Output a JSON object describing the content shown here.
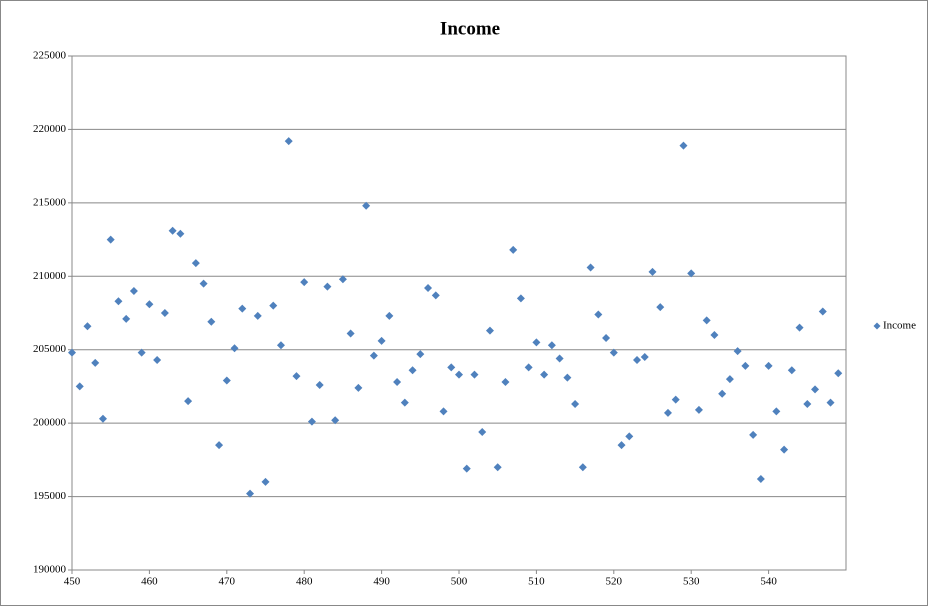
{
  "chart_data": {
    "type": "scatter",
    "title": "Income",
    "x": [
      450,
      451,
      452,
      453,
      454,
      455,
      456,
      457,
      458,
      459,
      460,
      461,
      462,
      463,
      464,
      465,
      466,
      467,
      468,
      469,
      470,
      471,
      472,
      473,
      474,
      475,
      476,
      477,
      478,
      479,
      480,
      481,
      482,
      483,
      484,
      485,
      486,
      487,
      488,
      489,
      490,
      491,
      492,
      493,
      494,
      495,
      496,
      497,
      498,
      499,
      500,
      501,
      502,
      503,
      504,
      505,
      506,
      507,
      508,
      509,
      510,
      511,
      512,
      513,
      514,
      515,
      516,
      517,
      518,
      519,
      520,
      521,
      522,
      523,
      524,
      525,
      526,
      527,
      528,
      529,
      530,
      531,
      532,
      533,
      534,
      535,
      536,
      537,
      538,
      539,
      540,
      541,
      542,
      543,
      544,
      545,
      546,
      547,
      548,
      549
    ],
    "series": [
      {
        "name": "Income",
        "color": "#4f81bd",
        "values": [
          204800,
          202500,
          206600,
          204100,
          200300,
          212500,
          208300,
          207100,
          209000,
          204800,
          208100,
          204300,
          207500,
          213100,
          212900,
          201500,
          210900,
          209500,
          206900,
          198500,
          202900,
          205100,
          207800,
          195200,
          207300,
          196000,
          208000,
          205300,
          219200,
          203200,
          209600,
          200100,
          202600,
          209300,
          200200,
          209800,
          206100,
          202400,
          214800,
          204600,
          205600,
          207300,
          202800,
          201400,
          203600,
          204700,
          209200,
          208700,
          200800,
          203800,
          203300,
          196900,
          203300,
          199400,
          206300,
          197000,
          202800,
          211800,
          208500,
          203800,
          205500,
          203300,
          205300,
          204400,
          203100,
          201300,
          197000,
          210600,
          207400,
          205800,
          204800,
          198500,
          199100,
          204300,
          204500,
          210300,
          207900,
          200700,
          201600,
          218900,
          210200,
          200900,
          207000,
          206000,
          202000,
          203000,
          204900,
          203900,
          199200,
          196200,
          203900,
          200800,
          198200,
          203600,
          206500,
          201300,
          202300,
          207600,
          201400,
          203400
        ]
      }
    ],
    "xlim": [
      450,
      550
    ],
    "xticks": [
      450,
      460,
      470,
      480,
      490,
      500,
      510,
      520,
      530,
      540
    ],
    "ylim": [
      190000,
      225000
    ],
    "yticks": [
      190000,
      195000,
      200000,
      205000,
      210000,
      215000,
      220000,
      225000
    ],
    "grid": true,
    "legend": "right"
  }
}
